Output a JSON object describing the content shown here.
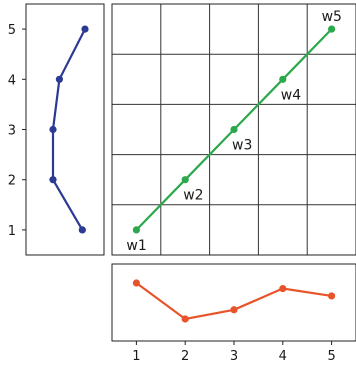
{
  "chart_data": [
    {
      "type": "line",
      "panel": "left-marginal",
      "y": [
        1,
        2,
        3,
        4,
        5
      ],
      "x": [
        0.55,
        0.0,
        0.0,
        0.12,
        0.6
      ],
      "color": "#2b3a93",
      "ylim": [
        0.5,
        5.5
      ],
      "yticks": [
        "1",
        "2",
        "3",
        "4",
        "5"
      ],
      "grid": false
    },
    {
      "type": "scatter",
      "panel": "main",
      "x": [
        1,
        2,
        3,
        4,
        5
      ],
      "y": [
        1,
        2,
        3,
        4,
        5
      ],
      "labels": [
        "w1",
        "w2",
        "w3",
        "w4",
        "w5"
      ],
      "color": "#2ca84c",
      "connected": true,
      "xlim": [
        0.5,
        5.5
      ],
      "ylim": [
        0.5,
        5.5
      ],
      "grid": true
    },
    {
      "type": "line",
      "panel": "bottom-marginal",
      "x": [
        1,
        2,
        3,
        4,
        5
      ],
      "y": [
        0.78,
        0.0,
        0.2,
        0.66,
        0.5
      ],
      "color": "#e8542a",
      "xlim": [
        0.5,
        5.5
      ],
      "xticks": [
        "1",
        "2",
        "3",
        "4",
        "5"
      ],
      "grid": false
    }
  ]
}
